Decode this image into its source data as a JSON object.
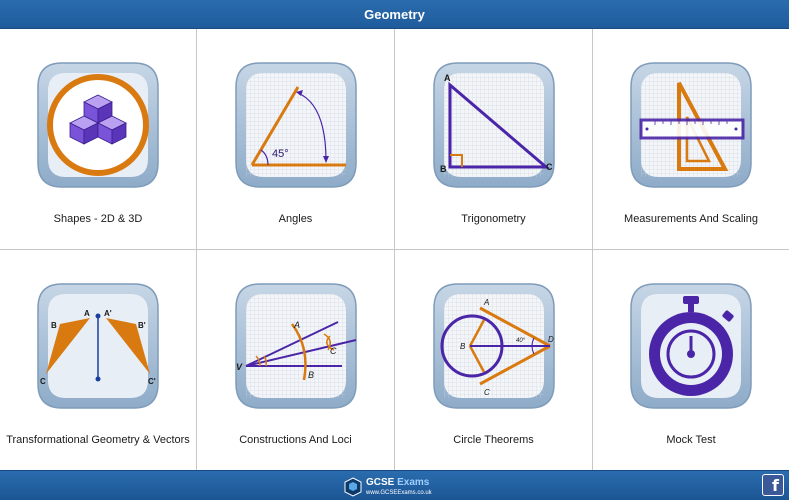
{
  "header": {
    "title": "Geometry"
  },
  "tiles": [
    {
      "label": "Shapes - 2D & 3D",
      "icon": "cubes-icon"
    },
    {
      "label": "Angles",
      "icon": "angle-icon",
      "annotation": "45°"
    },
    {
      "label": "Trigonometry",
      "icon": "right-triangle-icon",
      "vertices": [
        "A",
        "B",
        "C"
      ]
    },
    {
      "label": "Measurements And Scaling",
      "icon": "ruler-set-square-icon"
    },
    {
      "label": "Transformational Geometry & Vectors",
      "icon": "reflection-icon",
      "vertices": [
        "A",
        "A'",
        "B",
        "B'",
        "C",
        "C'"
      ]
    },
    {
      "label": "Constructions And Loci",
      "icon": "compass-construction-icon",
      "vertices": [
        "A",
        "B",
        "C",
        "V"
      ]
    },
    {
      "label": "Circle Theorems",
      "icon": "circle-tangents-icon",
      "vertices": [
        "A",
        "B",
        "C",
        "D"
      ],
      "annotation": "40°"
    },
    {
      "label": "Mock Test",
      "icon": "stopwatch-icon"
    }
  ],
  "footer": {
    "brand_name_part1": "GCSE",
    "brand_name_part2": " Exams",
    "brand_url": "www.GCSEExams.co.uk",
    "social": "f"
  },
  "colors": {
    "header_blue": "#2a6cae",
    "tile_blue": "#a9c0d8",
    "orange": "#d97a10",
    "purple": "#4b25a8"
  }
}
